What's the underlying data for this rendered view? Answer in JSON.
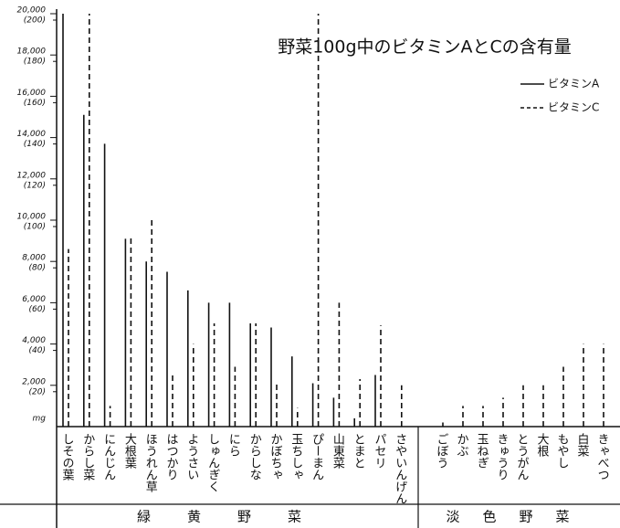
{
  "chart_data": {
    "type": "bar",
    "title": "野菜100g中のビタミンAとCの含有量",
    "groups": [
      {
        "label": "緑黄野菜",
        "categories": [
          "しその葉",
          "からし菜",
          "にんじん",
          "大根葉",
          "ほうれん草",
          "はつかり",
          "ようさい",
          "しゅんぎく",
          "にら",
          "からしな",
          "かぼちゃ",
          "玉ちしゃ",
          "ぴーまん",
          "山東菜",
          "とまと",
          "パセリ",
          "さやいんげん"
        ]
      },
      {
        "label": "淡色野菜",
        "categories": [
          "ごぼう",
          "かぶ",
          "玉ねぎ",
          "きゅうり",
          "とうがん",
          "大根",
          "もやし",
          "白菜",
          "きゃべつ"
        ]
      }
    ],
    "series": [
      {
        "name": "ビタミンA",
        "color": "#111111",
        "dash": false,
        "values": [
          20000,
          15100,
          13700,
          9100,
          8000,
          7500,
          6600,
          6000,
          6000,
          5000,
          4800,
          3400,
          2100,
          1400,
          400,
          2500,
          0,
          0,
          0,
          0,
          0,
          0,
          0,
          0,
          0,
          0
        ]
      },
      {
        "name": "ビタミンC",
        "color": "#111111",
        "dash": true,
        "axis": "y2",
        "values": [
          86,
          200,
          10,
          92,
          100,
          25,
          40,
          50,
          29,
          50,
          21,
          9,
          200,
          60,
          23,
          49,
          20,
          2,
          10,
          10,
          14,
          20,
          20,
          29,
          40,
          40
        ]
      }
    ],
    "ylim": [
      0,
      20000
    ],
    "yticks": [
      {
        "value": 2000,
        "label": "2,000"
      },
      {
        "value": 4000,
        "label": "4,000"
      },
      {
        "value": 6000,
        "label": "6,000"
      },
      {
        "value": 8000,
        "label": "8,000"
      },
      {
        "value": 10000,
        "label": "10,000"
      },
      {
        "value": 12000,
        "label": "12,000"
      },
      {
        "value": 14000,
        "label": "14,000"
      },
      {
        "value": 16000,
        "label": "16,000"
      },
      {
        "value": 18000,
        "label": "18,000"
      },
      {
        "value": 20000,
        "label": "20,000"
      }
    ],
    "y2lim": [
      0,
      200
    ],
    "y2ticks": [
      {
        "value": 20,
        "label": "(20)"
      },
      {
        "value": 40,
        "label": "(40)"
      },
      {
        "value": 60,
        "label": "(60)"
      },
      {
        "value": 80,
        "label": "(80)"
      },
      {
        "value": 100,
        "label": "(100)"
      },
      {
        "value": 120,
        "label": "(120)"
      },
      {
        "value": 140,
        "label": "(140)"
      },
      {
        "value": 160,
        "label": "(160)"
      },
      {
        "value": 180,
        "label": "(180)"
      },
      {
        "value": 200,
        "label": "(200)"
      }
    ],
    "y2_label": "mg",
    "legend": "top-right"
  }
}
